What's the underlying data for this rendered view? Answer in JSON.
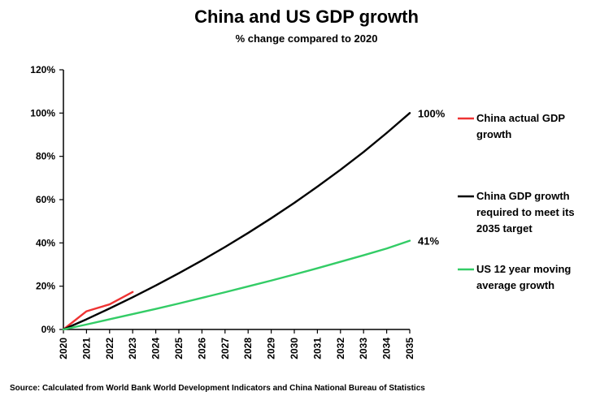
{
  "chart_data": {
    "type": "line",
    "title": "China and US GDP growth",
    "subtitle": "% change compared to 2020",
    "ylim": [
      0,
      120
    ],
    "y_ticks": [
      0,
      20,
      40,
      60,
      80,
      100,
      120
    ],
    "y_tick_labels": [
      "0%",
      "20%",
      "40%",
      "60%",
      "80%",
      "100%",
      "120%"
    ],
    "x_ticks": [
      "2020",
      "2021",
      "2022",
      "2023",
      "2024",
      "2025",
      "2026",
      "2027",
      "2028",
      "2029",
      "2030",
      "2031",
      "2032",
      "2033",
      "2034",
      "2035"
    ],
    "series": [
      {
        "name": "China actual GDP growth",
        "legend_lines": [
          "China actual GDP",
          "growth"
        ],
        "color": "#ee3333",
        "x": [
          2020,
          2021,
          2022,
          2023
        ],
        "values": [
          0,
          8.4,
          11.6,
          17.3
        ]
      },
      {
        "name": "China GDP growth required to meet its 2035 target",
        "legend_lines": [
          "China GDP growth",
          "required to meet its",
          "2035 target"
        ],
        "color": "#000000",
        "x": [
          2020,
          2021,
          2022,
          2023,
          2024,
          2025,
          2026,
          2027,
          2028,
          2029,
          2030,
          2031,
          2032,
          2033,
          2034,
          2035
        ],
        "values": [
          0,
          4.7,
          9.7,
          14.9,
          20.3,
          26.0,
          31.9,
          38.1,
          44.6,
          51.4,
          58.5,
          66.0,
          73.8,
          82.0,
          90.8,
          100
        ],
        "end_label": "100%"
      },
      {
        "name": "US 12 year moving average growth",
        "legend_lines": [
          "US 12 year moving",
          "average growth"
        ],
        "color": "#33cc66",
        "x": [
          2020,
          2021,
          2022,
          2023,
          2024,
          2025,
          2026,
          2027,
          2028,
          2029,
          2030,
          2031,
          2032,
          2033,
          2034,
          2035
        ],
        "values": [
          0,
          2.3,
          4.7,
          7.1,
          9.5,
          12.0,
          14.6,
          17.2,
          19.9,
          22.6,
          25.4,
          28.3,
          31.3,
          34.3,
          37.4,
          41
        ],
        "end_label": "41%"
      }
    ],
    "grid": false,
    "legend_position": "right"
  },
  "source": "Source:  Calculated from World Bank World Development Indicators and China National Bureau of Statistics"
}
